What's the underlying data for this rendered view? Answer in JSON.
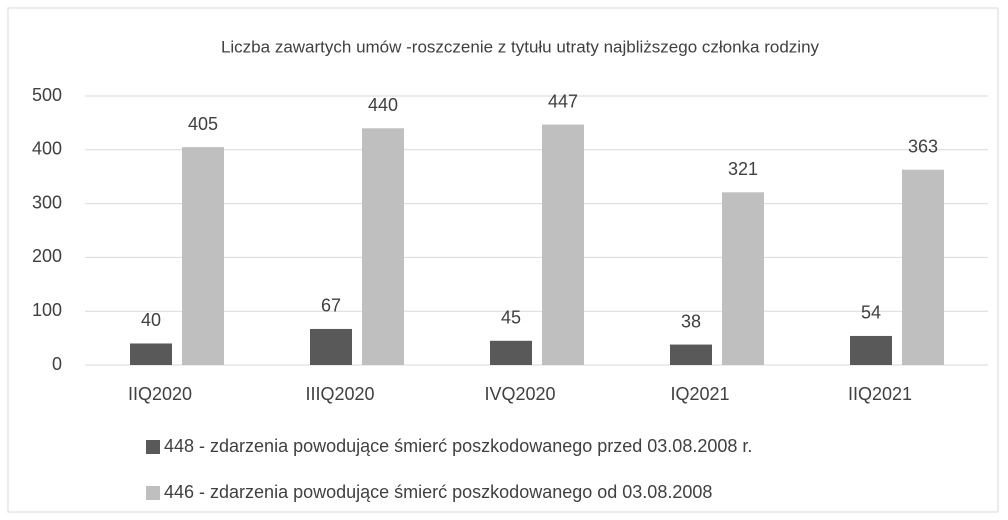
{
  "chart_data": {
    "type": "bar",
    "title": "Liczba zawartych umów -roszczenie z tytułu utraty najbliższego członka rodziny",
    "categories": [
      "IIQ2020",
      "IIIQ2020",
      "IVQ2020",
      "IQ2021",
      "IIQ2021"
    ],
    "series": [
      {
        "name": "448 - zdarzenia powodujące śmierć poszkodowanego przed 03.08.2008 r.",
        "color": "#595959",
        "values": [
          40,
          67,
          45,
          38,
          54
        ]
      },
      {
        "name": "446 - zdarzenia powodujące śmierć poszkodowanego od 03.08.2008",
        "color": "#bfbfbf",
        "values": [
          405,
          440,
          447,
          321,
          363
        ]
      }
    ],
    "ylim": [
      0,
      500
    ],
    "yticks": [
      0,
      100,
      200,
      300,
      400,
      500
    ],
    "grid": true,
    "legend": "bottom"
  }
}
